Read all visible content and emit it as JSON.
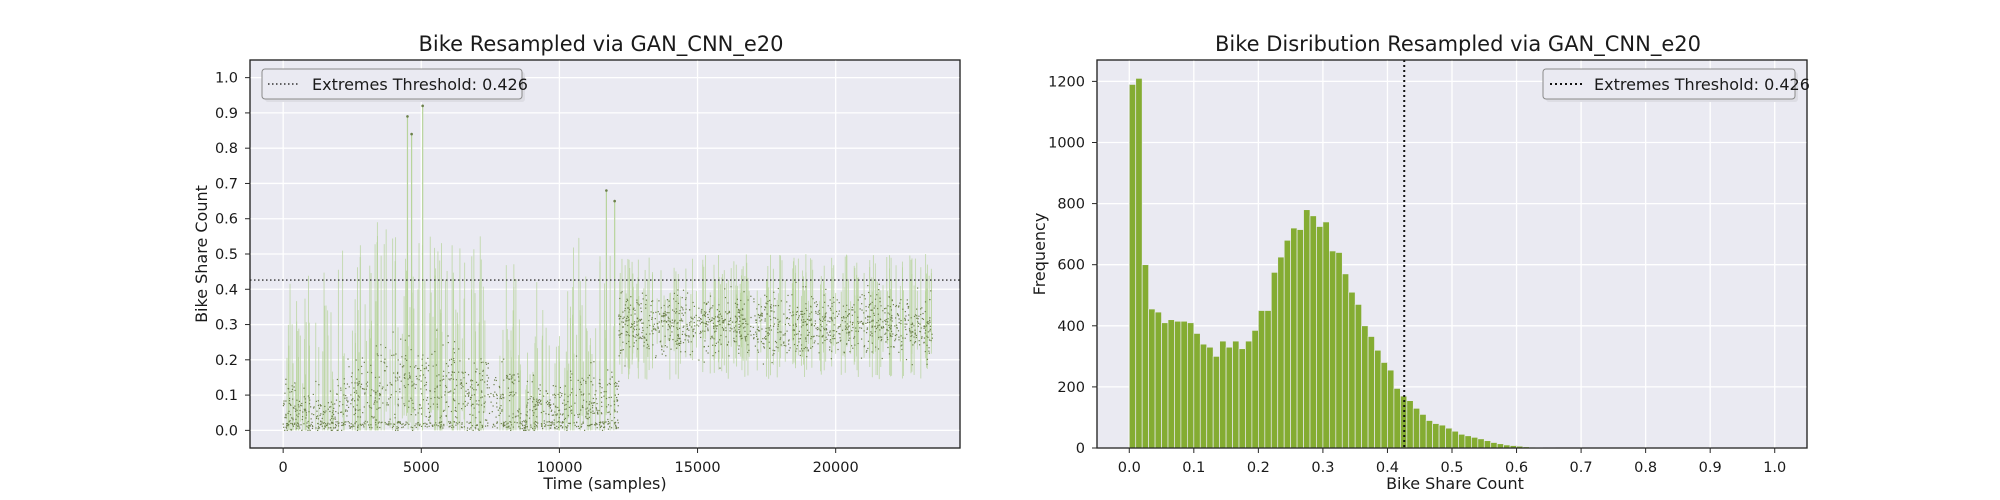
{
  "chart_data": [
    {
      "type": "scatter",
      "title": "Bike Resampled via GAN_CNN_e20",
      "xlabel": "Time (samples)",
      "ylabel": "Bike Share Count",
      "xlim": [
        -1200,
        24500
      ],
      "ylim": [
        -0.05,
        1.05
      ],
      "xticks": [
        0,
        5000,
        10000,
        15000,
        20000
      ],
      "yticks": [
        0.0,
        0.1,
        0.2,
        0.3,
        0.4,
        0.5,
        0.6,
        0.7,
        0.8,
        0.9,
        1.0
      ],
      "threshold": {
        "label": "Extremes Threshold: 0.426",
        "value": 0.426
      },
      "legend_position": "top-left",
      "grid": true,
      "colors": {
        "points": "#6b7f4a",
        "range": "#b8d49c",
        "background": "#eaeaf2",
        "grid": "#ffffff"
      },
      "segments": [
        {
          "x_start": 0,
          "x_end": 2100,
          "base": 0.06,
          "spread": 0.11,
          "peak": 0.47
        },
        {
          "x_start": 2100,
          "x_end": 3300,
          "base": 0.09,
          "spread": 0.15,
          "peak": 0.55
        },
        {
          "x_start": 3300,
          "x_end": 5200,
          "base": 0.13,
          "spread": 0.18,
          "peak": 0.6
        },
        {
          "x_start": 5200,
          "x_end": 7600,
          "base": 0.12,
          "spread": 0.17,
          "peak": 0.55
        },
        {
          "x_start": 7600,
          "x_end": 8550,
          "base": 0.1,
          "spread": 0.14,
          "peak": 0.48
        },
        {
          "x_start": 8550,
          "x_end": 8800,
          "base": 0.02,
          "spread": 0.05,
          "peak": 0.3
        },
        {
          "x_start": 8800,
          "x_end": 10300,
          "base": 0.07,
          "spread": 0.11,
          "peak": 0.45
        },
        {
          "x_start": 10300,
          "x_end": 12150,
          "base": 0.09,
          "spread": 0.14,
          "peak": 0.55
        },
        {
          "x_start": 12150,
          "x_end": 23500,
          "base": 0.3,
          "spread": 0.13,
          "peak": 0.5
        }
      ],
      "spikes": [
        {
          "x": 4500,
          "y": 0.89
        },
        {
          "x": 4650,
          "y": 0.84
        },
        {
          "x": 5050,
          "y": 0.92
        },
        {
          "x": 11700,
          "y": 0.68
        },
        {
          "x": 12000,
          "y": 0.65
        }
      ]
    },
    {
      "type": "bar",
      "title": "Bike Disribution Resampled via GAN_CNN_e20",
      "xlabel": "Bike Share Count",
      "ylabel": "Frequency",
      "xlim": [
        -0.05,
        1.05
      ],
      "ylim": [
        0,
        1270
      ],
      "xticks": [
        0.0,
        0.1,
        0.2,
        0.3,
        0.4,
        0.5,
        0.6,
        0.7,
        0.8,
        0.9,
        1.0
      ],
      "yticks": [
        0,
        200,
        400,
        600,
        800,
        1000,
        1200
      ],
      "bin_width": 0.01,
      "bins_start": 0.0,
      "values": [
        1190,
        1210,
        600,
        455,
        445,
        410,
        420,
        415,
        415,
        410,
        375,
        340,
        330,
        300,
        350,
        330,
        350,
        325,
        350,
        385,
        450,
        450,
        575,
        625,
        680,
        720,
        715,
        780,
        760,
        725,
        740,
        645,
        640,
        570,
        510,
        470,
        400,
        365,
        320,
        280,
        255,
        195,
        170,
        155,
        130,
        110,
        90,
        80,
        75,
        65,
        55,
        45,
        40,
        35,
        30,
        24,
        18,
        14,
        10,
        8,
        6,
        4,
        3,
        2,
        1,
        1
      ],
      "threshold": {
        "label": "Extremes Threshold: 0.426",
        "value": 0.426
      },
      "legend_position": "top-right",
      "grid": true,
      "colors": {
        "bars": "#84ac32",
        "background": "#eaeaf2",
        "grid": "#ffffff"
      }
    }
  ]
}
